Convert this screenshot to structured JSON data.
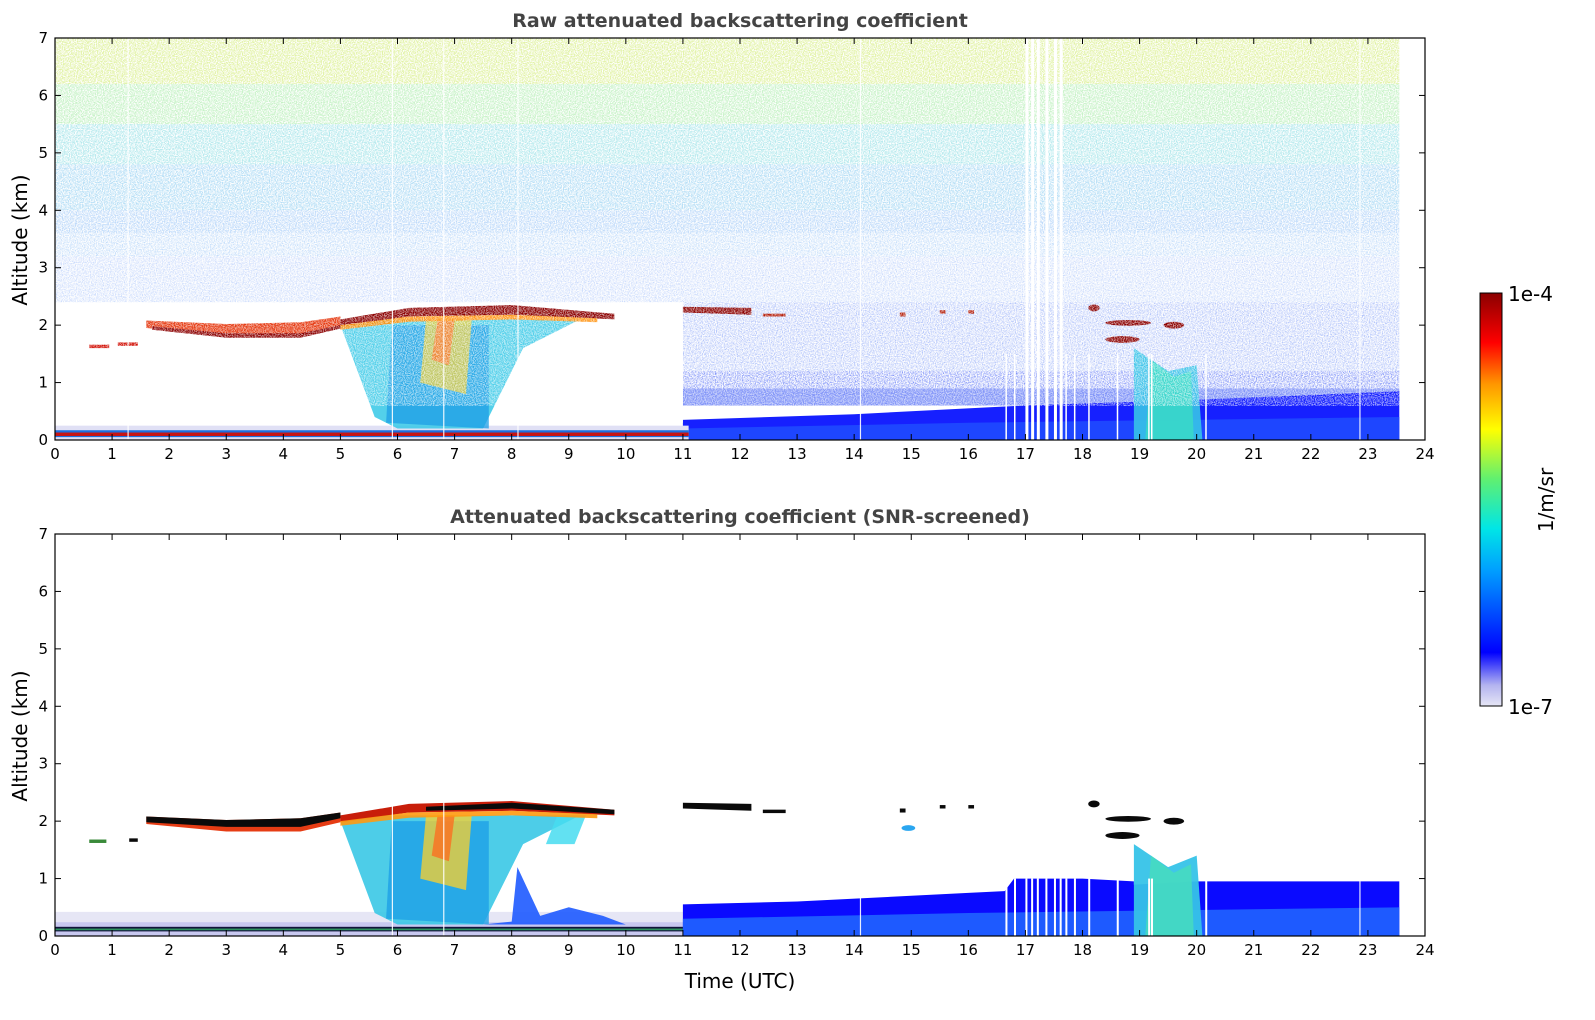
{
  "chart_data": [
    {
      "type": "heatmap",
      "title": "Raw attenuated backscattering coefficient",
      "xlabel": "",
      "ylabel": "Altitude (km)",
      "xlim": [
        0,
        24
      ],
      "ylim": [
        0,
        7
      ],
      "x_ticks": [
        "0",
        "1",
        "2",
        "3",
        "4",
        "5",
        "6",
        "7",
        "8",
        "9",
        "10",
        "11",
        "12",
        "13",
        "14",
        "15",
        "16",
        "17",
        "18",
        "19",
        "20",
        "21",
        "22",
        "23",
        "24"
      ],
      "y_ticks": [
        "0",
        "1",
        "2",
        "3",
        "4",
        "5",
        "6",
        "7"
      ],
      "data_end_time": 23.55,
      "features": {
        "noise_increases_with_altitude": true,
        "surface_layer_km": [
          0.0,
          0.2
        ],
        "boundary_layer_top_km_after_11": [
          0.4,
          1.2
        ],
        "cloud_layers": [
          {
            "start": 1.6,
            "end": 5.0,
            "base_start_km": 1.85,
            "base_end_km": 2.0
          },
          {
            "start": 5.0,
            "end": 9.8,
            "altitude_km": 2.25
          },
          {
            "start": 11.0,
            "end": 12.2,
            "altitude_km": 2.25
          },
          {
            "start": 17.9,
            "end": 18.8,
            "altitude_km": 2.05
          },
          {
            "start": 18.4,
            "end": 19.0,
            "altitude_km": 1.75
          },
          {
            "start": 19.4,
            "end": 19.8,
            "altitude_km": 2.0
          }
        ],
        "precipitation_fall_streaks": [
          {
            "start": 5.6,
            "end": 8.0,
            "top_km": 2.1
          },
          {
            "start": 19.0,
            "end": 20.0,
            "top_km": 1.4
          }
        ],
        "data_gap_lines_time": [
          17.0,
          17.1,
          17.2,
          17.35,
          17.5,
          17.6
        ]
      }
    },
    {
      "type": "heatmap",
      "title": "Attenuated backscattering coefficient (SNR-screened)",
      "xlabel": "Time (UTC)",
      "ylabel": "Altitude (km)",
      "xlim": [
        0,
        24
      ],
      "ylim": [
        0,
        7
      ],
      "x_ticks": [
        "0",
        "1",
        "2",
        "3",
        "4",
        "5",
        "6",
        "7",
        "8",
        "9",
        "10",
        "11",
        "12",
        "13",
        "14",
        "15",
        "16",
        "17",
        "18",
        "19",
        "20",
        "21",
        "22",
        "23",
        "24"
      ],
      "y_ticks": [
        "0",
        "1",
        "2",
        "3",
        "4",
        "5",
        "6",
        "7"
      ],
      "data_end_time": 23.55,
      "features": {
        "low_snr_removed": true,
        "saturated_cloud_pixels_black": true
      }
    }
  ],
  "colorbar": {
    "label": "1/m/sr",
    "min_label": "1e-7",
    "max_label": "1e-4",
    "scale": "log",
    "colors": [
      "#e6e6f5",
      "#b4b4f0",
      "#0000ff",
      "#00a0ff",
      "#00e6e6",
      "#60f070",
      "#ffff00",
      "#ff9600",
      "#ff0000",
      "#8b0000"
    ]
  }
}
